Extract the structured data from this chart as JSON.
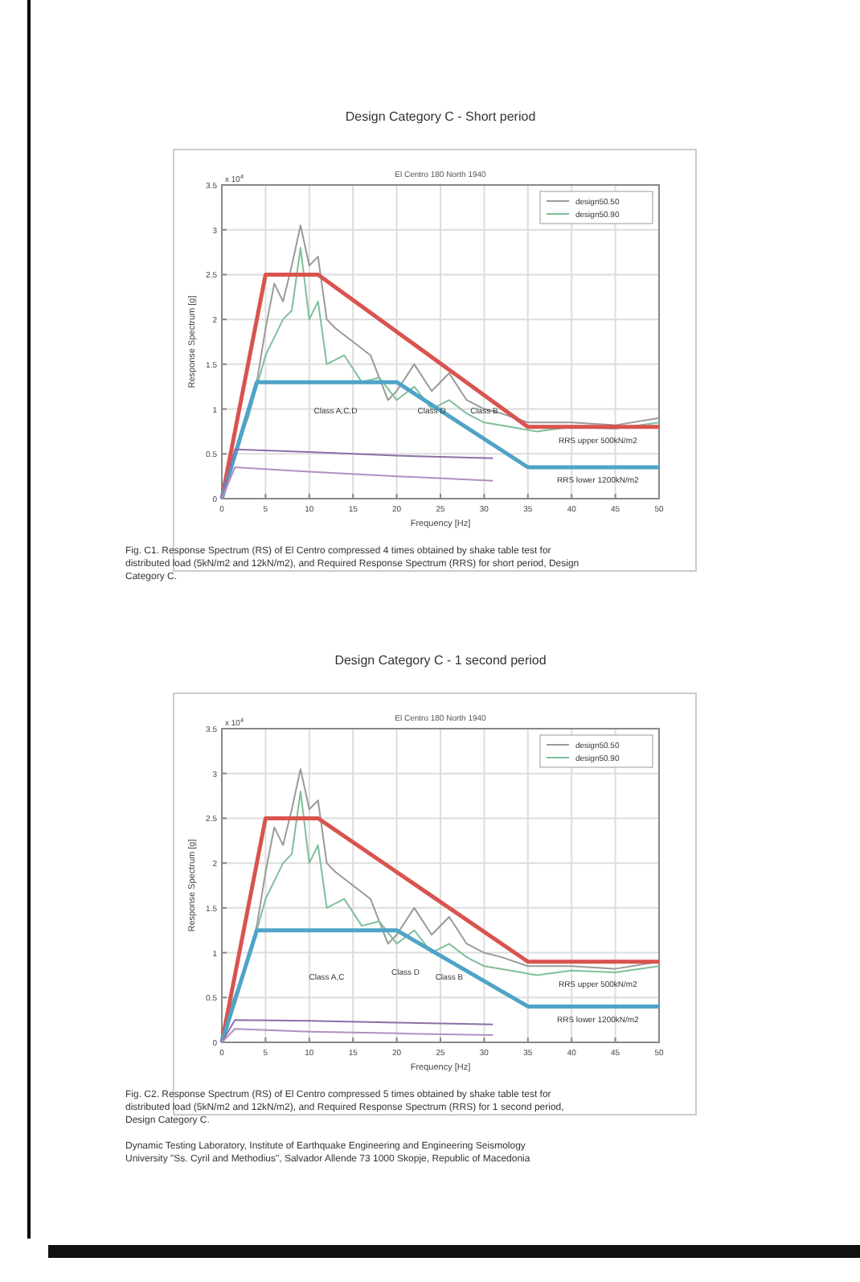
{
  "chart_data": [
    {
      "type": "line",
      "title": "Design Category C - Short period",
      "subtitle": "El Centro 180 North 1940",
      "xlabel": "Frequency [Hz]",
      "ylabel": "Response Spectrum [g]",
      "xlim": [
        0,
        50
      ],
      "xticks": [
        0,
        5,
        10,
        15,
        20,
        25,
        30,
        35,
        40,
        45,
        50
      ],
      "ylim": [
        0,
        3.5
      ],
      "yticks": [
        0,
        0.5,
        1,
        1.5,
        2,
        2.5,
        3,
        3.5
      ],
      "grid": true,
      "legend": "top right",
      "series": [
        {
          "name": "design50.50",
          "color": "#9a9a9a",
          "x": [
            0,
            2,
            4,
            5,
            6,
            7,
            8,
            9,
            10,
            11,
            12,
            13,
            15,
            17,
            19,
            20,
            22,
            24,
            26,
            28,
            30,
            32,
            35,
            40,
            45,
            50
          ],
          "values": [
            0,
            0.6,
            1.3,
            1.9,
            2.4,
            2.2,
            2.6,
            3.05,
            2.6,
            2.7,
            2.0,
            1.9,
            1.75,
            1.6,
            1.1,
            1.2,
            1.5,
            1.2,
            1.4,
            1.1,
            1.0,
            0.95,
            0.85,
            0.85,
            0.82,
            0.9
          ]
        },
        {
          "name": "design50.90",
          "color": "#7fbf9a",
          "x": [
            0,
            1,
            3,
            5,
            6,
            7,
            8,
            9,
            10,
            11,
            12,
            14,
            16,
            18,
            20,
            22,
            24,
            26,
            28,
            30,
            33,
            36,
            40,
            45,
            50
          ],
          "values": [
            0,
            0.4,
            0.9,
            1.6,
            1.8,
            2.0,
            2.1,
            2.8,
            2.0,
            2.2,
            1.5,
            1.6,
            1.3,
            1.35,
            1.1,
            1.25,
            1.0,
            1.1,
            0.95,
            0.85,
            0.8,
            0.75,
            0.8,
            0.78,
            0.85
          ]
        },
        {
          "color": "#d9534f",
          "x": [
            0,
            5,
            11,
            35,
            50
          ],
          "values": [
            0,
            2.5,
            2.5,
            0.8,
            0.8
          ]
        },
        {
          "color": "#4fa3c7",
          "x": [
            0,
            4,
            20,
            35,
            50
          ],
          "values": [
            0,
            1.3,
            1.3,
            0.35,
            0.35
          ]
        },
        {
          "color": "#8a6fa8",
          "x": [
            0,
            1.5,
            10,
            20,
            31
          ],
          "values": [
            0,
            0.55,
            0.52,
            0.48,
            0.45
          ]
        },
        {
          "color": "#b08fc0",
          "x": [
            0,
            1.5,
            10,
            20,
            31
          ],
          "values": [
            0,
            0.35,
            0.3,
            0.25,
            0.2
          ]
        }
      ],
      "annotations": [
        "x 10$^{4}$",
        "Fig. C1. Response Spectrum (RS) of El Centro compressed 4 times obtained by shake table test for distributed load (5kN/m2 and 12kN/m2), and Required Response Spectrum (RRS) for short period, Design Category C.",
        "Class A,C,D",
        "Class D",
        "Class B",
        "RRS upper 500kN/m2",
        "RRS lower 1200kN/m2"
      ]
    },
    {
      "type": "line",
      "title": "Design Category C - 1 second period",
      "subtitle": "El Centro 180 North 1940",
      "xlabel": "Frequency [Hz]",
      "ylabel": "Response Spectrum [g]",
      "xlim": [
        0,
        50
      ],
      "xticks": [
        0,
        5,
        10,
        15,
        20,
        25,
        30,
        35,
        40,
        45,
        50
      ],
      "ylim": [
        0,
        3.5
      ],
      "yticks": [
        0,
        0.5,
        1,
        1.5,
        2,
        2.5,
        3,
        3.5
      ],
      "grid": true,
      "legend": "top right",
      "series": [
        {
          "name": "design50.50",
          "color": "#9a9a9a",
          "x": [
            0,
            2,
            4,
            5,
            6,
            7,
            8,
            9,
            10,
            11,
            12,
            13,
            15,
            17,
            19,
            20,
            22,
            24,
            26,
            28,
            30,
            32,
            35,
            40,
            45,
            50
          ],
          "values": [
            0,
            0.6,
            1.3,
            1.9,
            2.4,
            2.2,
            2.6,
            3.05,
            2.6,
            2.7,
            2.0,
            1.9,
            1.75,
            1.6,
            1.1,
            1.2,
            1.5,
            1.2,
            1.4,
            1.1,
            1.0,
            0.95,
            0.85,
            0.85,
            0.82,
            0.9
          ]
        },
        {
          "name": "design50.90",
          "color": "#7fbf9a",
          "x": [
            0,
            1,
            3,
            5,
            6,
            7,
            8,
            9,
            10,
            11,
            12,
            14,
            16,
            18,
            20,
            22,
            24,
            26,
            28,
            30,
            33,
            36,
            40,
            45,
            50
          ],
          "values": [
            0,
            0.4,
            0.9,
            1.6,
            1.8,
            2.0,
            2.1,
            2.8,
            2.0,
            2.2,
            1.5,
            1.6,
            1.3,
            1.35,
            1.1,
            1.25,
            1.0,
            1.1,
            0.95,
            0.85,
            0.8,
            0.75,
            0.8,
            0.78,
            0.85
          ]
        },
        {
          "color": "#d9534f",
          "x": [
            0,
            5,
            11,
            35,
            50
          ],
          "values": [
            0,
            2.5,
            2.5,
            0.9,
            0.9
          ]
        },
        {
          "color": "#4fa3c7",
          "x": [
            0,
            4,
            20,
            35,
            50
          ],
          "values": [
            0,
            1.25,
            1.25,
            0.4,
            0.4
          ]
        },
        {
          "color": "#8a6fa8",
          "x": [
            0,
            1.5,
            10,
            20,
            31
          ],
          "values": [
            0,
            0.25,
            0.24,
            0.22,
            0.2
          ]
        },
        {
          "color": "#b08fc0",
          "x": [
            0,
            1.5,
            10,
            20,
            31
          ],
          "values": [
            0,
            0.15,
            0.12,
            0.1,
            0.08
          ]
        }
      ],
      "annotations": [
        "x 10$^{4}$",
        "Fig. C2. Response Spectrum (RS) of El Centro compressed 5 times obtained by shake table test for distributed load (5kN/m2 and 12kN/m2), and Required Response Spectrum (RRS) for 1 second period, Design Category C.",
        "Dynamic Testing Laboratory, Institute of Earthquake Engineering and Engineering Seismology University \"Ss. Cyril and Methodius\", Salvador Allende 73 1000 Skopje, Republic of Macedonia",
        "Class A,C",
        "Class D",
        "Class B",
        "RRS upper 500kN/m2",
        "RRS lower 1200kN/m2"
      ]
    }
  ]
}
